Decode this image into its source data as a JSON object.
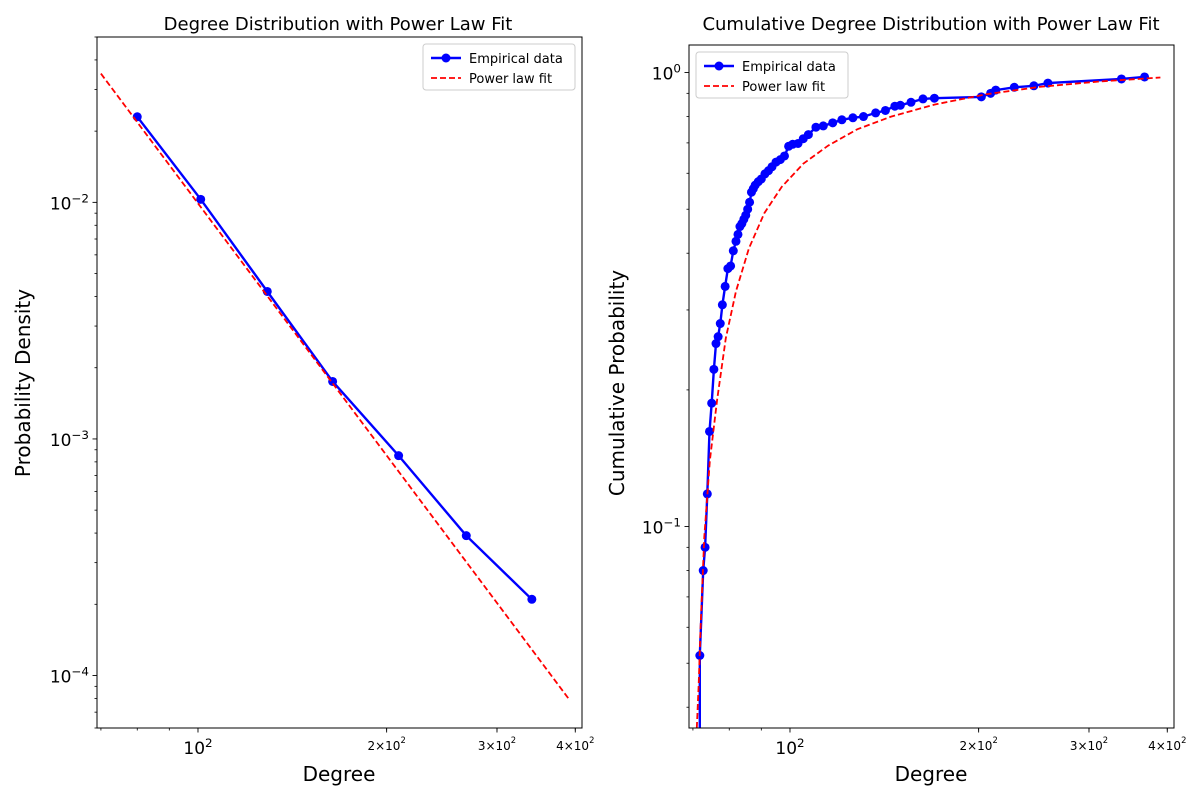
{
  "chart_data": [
    {
      "type": "line",
      "title": "Degree Distribution with Power Law Fit",
      "xlabel": "Degree",
      "ylabel": "Probability Density",
      "xscale": "log",
      "yscale": "log",
      "xlim": [
        69,
        410
      ],
      "ylim": [
        6e-05,
        0.05
      ],
      "legend": {
        "placement": "top-right",
        "entries": [
          "Empirical data",
          "Power law fit"
        ]
      },
      "xticks": [
        {
          "value": 100,
          "label": "10^2",
          "size": "major"
        },
        {
          "value": 200,
          "label": "2×10^2",
          "size": "minor"
        },
        {
          "value": 300,
          "label": "3×10^2",
          "size": "minor"
        },
        {
          "value": 400,
          "label": "4×10^2",
          "size": "minor"
        }
      ],
      "yticks": [
        {
          "value": 0.01,
          "label": "10^-2"
        },
        {
          "value": 0.001,
          "label": "10^-3"
        },
        {
          "value": 0.0001,
          "label": "10^-4"
        }
      ],
      "series": [
        {
          "name": "Empirical data",
          "style": "solid-marker",
          "color": "#0000ff",
          "x": [
            80,
            101,
            129,
            164,
            209,
            268,
            341
          ],
          "y": [
            0.023,
            0.0103,
            0.0042,
            0.00175,
            0.00085,
            0.00039,
            0.00021
          ]
        },
        {
          "name": "Power law fit",
          "style": "dashed",
          "color": "#ff0000",
          "x": [
            70,
            390
          ],
          "y": [
            0.035,
            8e-05
          ]
        }
      ]
    },
    {
      "type": "line",
      "title": "Cumulative Degree Distribution with Power Law Fit",
      "xlabel": "Degree",
      "ylabel": "Cumulative Probability",
      "xscale": "log",
      "yscale": "log",
      "xlim": [
        69,
        410
      ],
      "ylim": [
        0.036,
        1.15
      ],
      "legend": {
        "placement": "top-left",
        "entries": [
          "Empirical data",
          "Power law fit"
        ]
      },
      "xticks": [
        {
          "value": 100,
          "label": "10^2",
          "size": "major"
        },
        {
          "value": 200,
          "label": "2×10^2",
          "size": "minor"
        },
        {
          "value": 300,
          "label": "3×10^2",
          "size": "minor"
        },
        {
          "value": 400,
          "label": "4×10^2",
          "size": "minor"
        }
      ],
      "yticks": [
        {
          "value": 1,
          "label": "10^0"
        },
        {
          "value": 0.1,
          "label": "10^-1"
        }
      ],
      "series": [
        {
          "name": "Empirical data",
          "style": "solid-marker",
          "color": "#0000ff",
          "line_start": [
            71.8,
            0.036
          ],
          "x": [
            71.8,
            72.7,
            73.2,
            73.8,
            74.4,
            75.0,
            75.6,
            76.2,
            76.8,
            77.4,
            78.0,
            78.8,
            79.6,
            80.4,
            81.2,
            82.0,
            82.6,
            83.2,
            83.8,
            84.4,
            85.0,
            85.6,
            86.2,
            86.8,
            87.4,
            88.0,
            89.0,
            90.0,
            91.2,
            92.4,
            93.6,
            95.0,
            96.5,
            98.0,
            99.5,
            101.0,
            103.0,
            105.0,
            107.0,
            110.0,
            113.0,
            117.0,
            121.0,
            126.0,
            131.0,
            137.0,
            142.0,
            147.0,
            150.0,
            156.0,
            163.0,
            170.0,
            202.0,
            209.0,
            213.0,
            228.0,
            245.0,
            258.0,
            338.0,
            368.0
          ],
          "y": [
            0.052,
            0.08,
            0.09,
            0.118,
            0.162,
            0.187,
            0.222,
            0.253,
            0.262,
            0.28,
            0.308,
            0.338,
            0.37,
            0.375,
            0.405,
            0.425,
            0.44,
            0.458,
            0.465,
            0.475,
            0.485,
            0.5,
            0.518,
            0.545,
            0.555,
            0.565,
            0.575,
            0.583,
            0.598,
            0.608,
            0.62,
            0.635,
            0.643,
            0.655,
            0.688,
            0.695,
            0.698,
            0.715,
            0.73,
            0.758,
            0.763,
            0.775,
            0.787,
            0.795,
            0.8,
            0.815,
            0.825,
            0.843,
            0.847,
            0.86,
            0.875,
            0.878,
            0.884,
            0.9,
            0.915,
            0.928,
            0.935,
            0.948,
            0.968,
            0.978
          ]
        },
        {
          "name": "Power law fit",
          "style": "dashed",
          "color": "#ff0000",
          "x": [
            71.0,
            71.5,
            72.0,
            73.0,
            74.5,
            76.5,
            79.0,
            82.0,
            86.0,
            91.0,
            97.0,
            105.0,
            115.0,
            128.0,
            145.0,
            170.0,
            205.0,
            250.0,
            310.0,
            390.0
          ],
          "y": [
            0.036,
            0.045,
            0.06,
            0.095,
            0.14,
            0.19,
            0.26,
            0.33,
            0.41,
            0.49,
            0.56,
            0.63,
            0.69,
            0.75,
            0.8,
            0.85,
            0.895,
            0.93,
            0.955,
            0.975
          ]
        }
      ]
    }
  ]
}
